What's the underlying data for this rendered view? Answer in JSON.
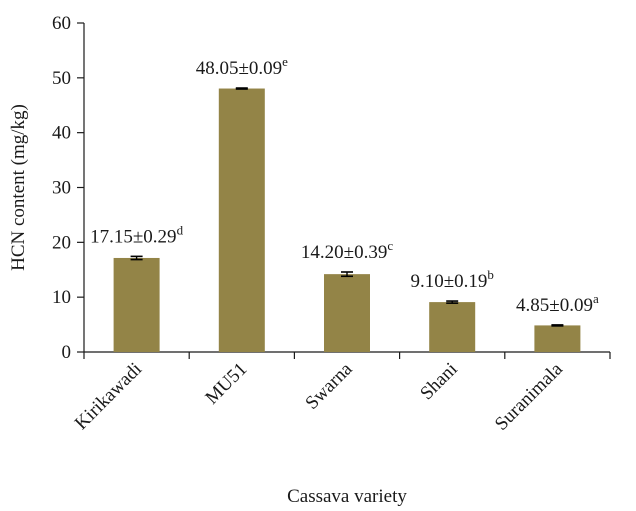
{
  "chart_data": {
    "type": "bar",
    "title": "",
    "xlabel": "Cassava variety",
    "ylabel": "HCN content (mg/kg)",
    "ylim": [
      0,
      60
    ],
    "yticks": [
      0,
      10,
      20,
      30,
      40,
      50,
      60
    ],
    "grid": false,
    "categories": [
      "Kirikawadi",
      "MU51",
      "Swarna",
      "Shani",
      "Suranimala"
    ],
    "values": [
      17.15,
      48.05,
      14.2,
      9.1,
      4.85
    ],
    "errors": [
      0.29,
      0.09,
      0.39,
      0.19,
      0.09
    ],
    "data_labels": [
      {
        "text": "17.15±0.29",
        "sup": "d"
      },
      {
        "text": "48.05±0.09",
        "sup": "e"
      },
      {
        "text": "14.20±0.39",
        "sup": "c"
      },
      {
        "text": "9.10±0.19",
        "sup": "b"
      },
      {
        "text": "4.85±0.09",
        "sup": "a"
      }
    ],
    "bar_color": "#938447"
  }
}
